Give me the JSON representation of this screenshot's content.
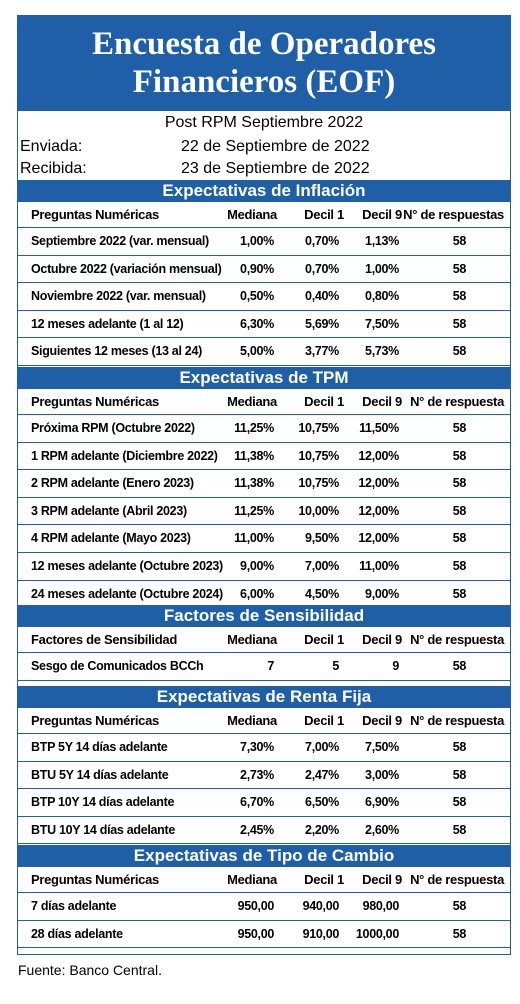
{
  "title": {
    "line1": "Encuesta de Operadores",
    "line2": "Financieros (EOF)"
  },
  "subtitle": "Post RPM Septiembre 2022",
  "sent": {
    "label": "Enviada:",
    "value": "22 de Septiembre de 2022"
  },
  "received": {
    "label": "Recibida:",
    "value": "23 de Septiembre de 2022"
  },
  "sections": [
    {
      "title": "Expectativas de Inflación",
      "headers": [
        "Preguntas Numéricas",
        "Mediana",
        "Decil 1",
        "Decil 9",
        "N° de respuestas"
      ],
      "rows": [
        [
          "Septiembre 2022 (var. mensual)",
          "1,00%",
          "0,70%",
          "1,13%",
          "58"
        ],
        [
          "Octubre 2022 (variación mensual)",
          "0,90%",
          "0,70%",
          "1,00%",
          "58"
        ],
        [
          "Noviembre 2022 (var. mensual)",
          "0,50%",
          "0,40%",
          "0,80%",
          "58"
        ],
        [
          "12 meses adelante (1 al 12)",
          "6,30%",
          "5,69%",
          "7,50%",
          "58"
        ],
        [
          "Siguientes 12 meses (13 al 24)",
          "5,00%",
          "3,77%",
          "5,73%",
          "58"
        ]
      ]
    },
    {
      "title": "Expectativas de TPM",
      "headers": [
        "Preguntas Numéricas",
        "Mediana",
        "Decil 1",
        "Decil 9",
        "N° de respuesta"
      ],
      "rows": [
        [
          "Próxima RPM (Octubre 2022)",
          "11,25%",
          "10,75%",
          "11,50%",
          "58"
        ],
        [
          "1 RPM adelante (Diciembre 2022)",
          "11,38%",
          "10,75%",
          "12,00%",
          "58"
        ],
        [
          "2 RPM adelante (Enero 2023)",
          "11,38%",
          "10,75%",
          "12,00%",
          "58"
        ],
        [
          "3 RPM adelante (Abril 2023)",
          "11,25%",
          "10,00%",
          "12,00%",
          "58"
        ],
        [
          "4 RPM adelante (Mayo 2023)",
          "11,00%",
          "9,50%",
          "12,00%",
          "58"
        ],
        [
          "12 meses adelante (Octubre 2023)",
          "9,00%",
          "7,00%",
          "11,00%",
          "58"
        ],
        [
          "24 meses adelante (Octubre 2024)",
          "6,00%",
          "4,50%",
          "9,00%",
          "58"
        ]
      ]
    },
    {
      "title": "Factores de Sensibilidad",
      "headers": [
        "Factores de Sensibilidad",
        "Mediana",
        "Decil 1",
        "Decil 9",
        "N° de respuesta"
      ],
      "rows": [
        [
          "Sesgo de Comunicados BCCh",
          "7",
          "5",
          "9",
          "58"
        ]
      ]
    },
    {
      "title": "Expectativas  de Renta Fija",
      "headers": [
        "Preguntas Numéricas",
        "Mediana",
        "Decil 1",
        "Decil 9",
        "N° de respuesta"
      ],
      "rows": [
        [
          "BTP 5Y 14 días adelante",
          "7,30%",
          "7,00%",
          "7,50%",
          "58"
        ],
        [
          "BTU 5Y 14 días adelante",
          "2,73%",
          "2,47%",
          "3,00%",
          "58"
        ],
        [
          "BTP 10Y 14 días adelante",
          "6,70%",
          "6,50%",
          "6,90%",
          "58"
        ],
        [
          "BTU 10Y 14 días adelante",
          "2,45%",
          "2,20%",
          "2,60%",
          "58"
        ]
      ]
    },
    {
      "title": "Expectativas  de Tipo de Cambio",
      "headers": [
        "Preguntas Numéricas",
        "Mediana",
        "Decil 1",
        "Decil 9",
        "N° de respuesta"
      ],
      "rows": [
        [
          "7 días adelante",
          "950,00",
          "940,00",
          "980,00",
          "58"
        ],
        [
          "28 días adelante",
          "950,00",
          "910,00",
          "1000,00",
          "58"
        ]
      ]
    }
  ],
  "footer": "Fuente: Banco Central.",
  "colors": {
    "accent": "#1f5fa8"
  }
}
